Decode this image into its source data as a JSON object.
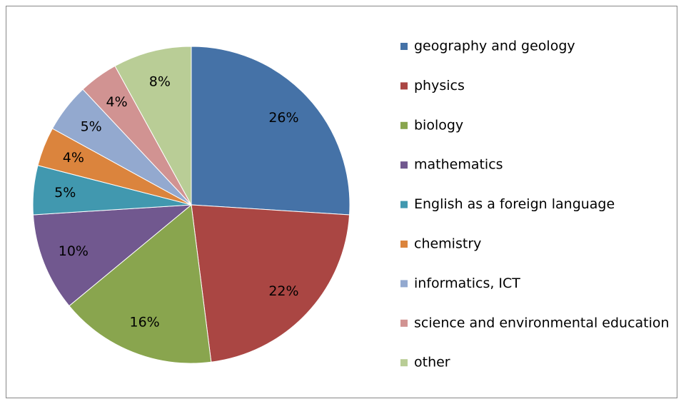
{
  "chart_data": {
    "type": "pie",
    "categories": [
      "geography and geology",
      "physics",
      "biology",
      "mathematics",
      "English as a foreign language",
      "chemistry",
      "informatics, ICT",
      "science and environmental education",
      "other"
    ],
    "values": [
      26,
      22,
      16,
      10,
      5,
      4,
      5,
      4,
      8
    ],
    "value_labels": [
      "26%",
      "22%",
      "16%",
      "10%",
      "5%",
      "4%",
      "5%",
      "4%",
      "8%"
    ],
    "colors": [
      "#4572a7",
      "#aa4643",
      "#89a54e",
      "#71588f",
      "#4198af",
      "#db843d",
      "#93a9cf",
      "#d19392",
      "#b9cd96"
    ],
    "legend": "right"
  }
}
